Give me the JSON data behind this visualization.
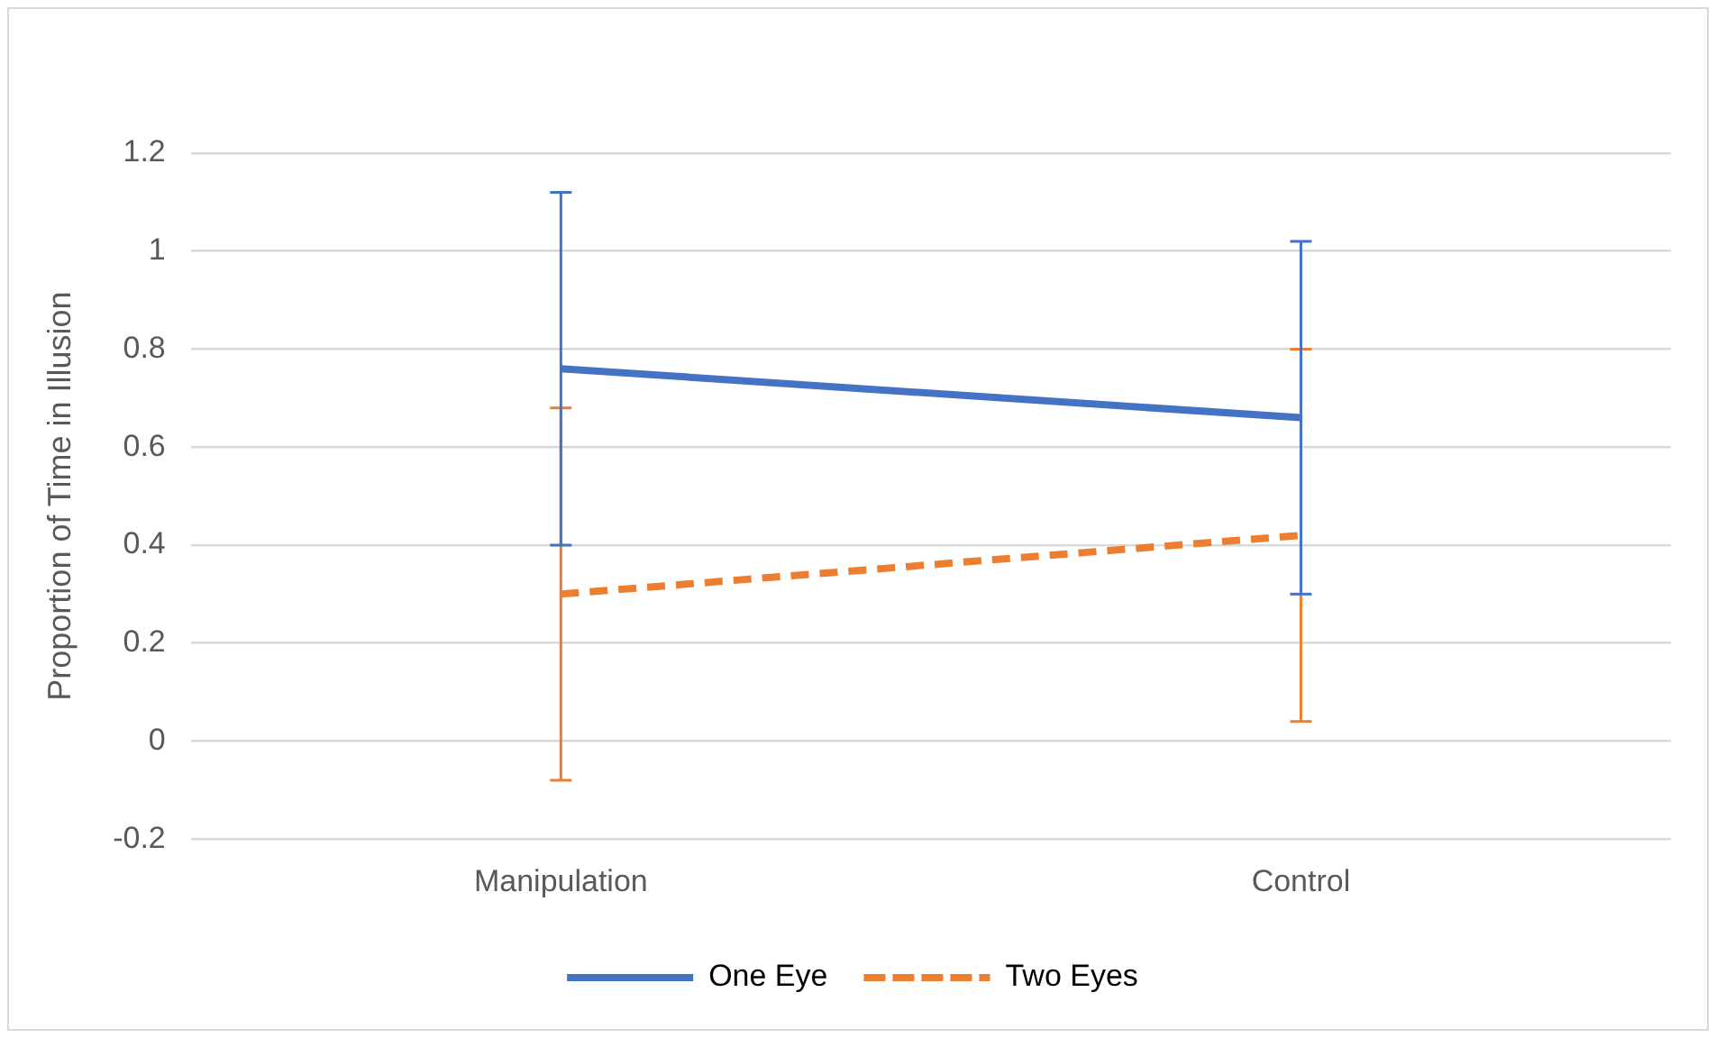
{
  "chart_data": {
    "type": "line",
    "ylabel": "Proportion of Time in Illusion",
    "categories": [
      "Manipulation",
      "Control"
    ],
    "series": [
      {
        "name": "One Eye",
        "color": "#4472c4",
        "values": [
          0.76,
          0.66
        ],
        "errors": [
          0.36,
          0.36
        ],
        "line_style": "solid"
      },
      {
        "name": "Two Eyes",
        "color": "#ed7d31",
        "values": [
          0.3,
          0.42
        ],
        "errors": [
          0.38,
          0.38
        ],
        "line_style": "dashed"
      }
    ],
    "ylim": [
      -0.2,
      1.2
    ],
    "yticks": [
      -0.2,
      0,
      0.2,
      0.4,
      0.6,
      0.8,
      1,
      1.2
    ],
    "grid": "y",
    "legend": "bottom",
    "marker": "none"
  }
}
